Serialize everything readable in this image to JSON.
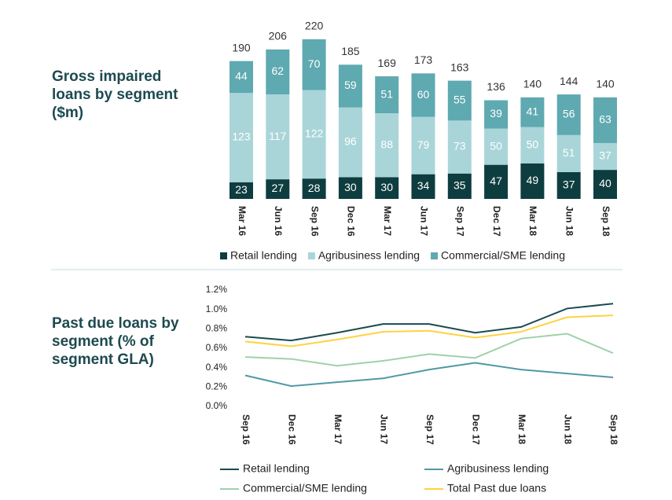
{
  "chart_data": [
    {
      "type": "stacked_bar",
      "title": "Gross impaired loans by segment ($m)",
      "categories": [
        "Mar 16",
        "Jun 16",
        "Sep 16",
        "Dec 16",
        "Mar 17",
        "Jun 17",
        "Sep 17",
        "Dec 17",
        "Mar 18",
        "Jun 18",
        "Sep 18"
      ],
      "series": [
        {
          "name": "Retail lending",
          "color": "#0e3d40",
          "values": [
            23,
            27,
            28,
            30,
            30,
            34,
            35,
            47,
            49,
            37,
            40
          ]
        },
        {
          "name": "Agribusiness lending",
          "color": "#a9d5d9",
          "values": [
            123,
            117,
            122,
            96,
            88,
            79,
            73,
            50,
            50,
            51,
            37
          ]
        },
        {
          "name": "Commercial/SME lending",
          "color": "#5fa9b1",
          "values": [
            44,
            62,
            70,
            59,
            51,
            60,
            55,
            39,
            41,
            56,
            63
          ]
        }
      ],
      "totals": [
        190,
        206,
        220,
        185,
        169,
        173,
        163,
        136,
        140,
        144,
        140
      ]
    },
    {
      "type": "line",
      "title": "Past due loans by segment (% of segment GLA)",
      "categories": [
        "Sep 16",
        "Dec 16",
        "Mar 17",
        "Jun 17",
        "Sep 17",
        "Dec 17",
        "Mar 18",
        "Jun 18",
        "Sep 18"
      ],
      "ylim": [
        0,
        1.2
      ],
      "yticks": [
        {
          "value": 0,
          "label": "0.0%"
        },
        {
          "value": 0.2,
          "label": "0.2%"
        },
        {
          "value": 0.4,
          "label": "0.4%"
        },
        {
          "value": 0.6,
          "label": "0.6%"
        },
        {
          "value": 0.8,
          "label": "0.8%"
        },
        {
          "value": 1.0,
          "label": "1.0%"
        },
        {
          "value": 1.2,
          "label": "1.2%"
        }
      ],
      "series": [
        {
          "name": "Retail lending",
          "color": "#1b4a50",
          "values": [
            0.72,
            0.68,
            0.76,
            0.85,
            0.85,
            0.76,
            0.82,
            1.01,
            1.06
          ]
        },
        {
          "name": "Agribusiness lending",
          "color": "#4f9aa3",
          "values": [
            0.32,
            0.21,
            0.25,
            0.29,
            0.38,
            0.45,
            0.38,
            0.34,
            0.3
          ]
        },
        {
          "name": "Commercial/SME lending",
          "color": "#9fd1a8",
          "values": [
            0.51,
            0.49,
            0.42,
            0.47,
            0.54,
            0.5,
            0.7,
            0.75,
            0.55
          ]
        },
        {
          "name": "Total Past due loans",
          "color": "#ffd23f",
          "values": [
            0.67,
            0.62,
            0.69,
            0.77,
            0.78,
            0.71,
            0.77,
            0.92,
            0.94
          ]
        }
      ]
    }
  ]
}
